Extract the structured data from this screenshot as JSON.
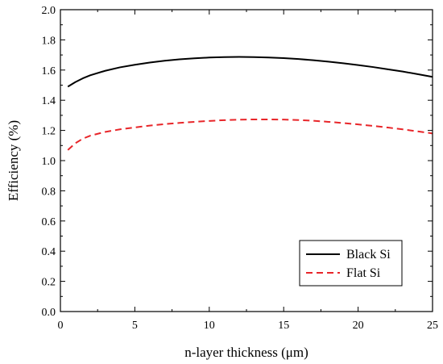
{
  "chart_data": {
    "type": "line",
    "title": "",
    "xlabel": "n-layer thickness (μm)",
    "ylabel": "Efficiency (%)",
    "xlim": [
      0,
      25
    ],
    "ylim": [
      0.0,
      2.0
    ],
    "x_ticks": [
      "0",
      "5",
      "10",
      "15",
      "20",
      "25"
    ],
    "y_ticks": [
      "0.0",
      "0.2",
      "0.4",
      "0.6",
      "0.8",
      "1.0",
      "1.2",
      "1.4",
      "1.6",
      "1.8",
      "2.0"
    ],
    "grid": false,
    "legend_position": "bottom-right",
    "series": [
      {
        "name": "Black Si",
        "color": "#000000",
        "style": "solid",
        "x": [
          0.5,
          1,
          1.5,
          2,
          3,
          4,
          5,
          6,
          7,
          8,
          9,
          10,
          11,
          12,
          13,
          14,
          15,
          16,
          17,
          18,
          19,
          20,
          21,
          22,
          23,
          24,
          25
        ],
        "y": [
          1.49,
          1.52,
          1.545,
          1.565,
          1.595,
          1.618,
          1.635,
          1.65,
          1.662,
          1.671,
          1.678,
          1.683,
          1.686,
          1.687,
          1.686,
          1.683,
          1.679,
          1.673,
          1.665,
          1.656,
          1.645,
          1.633,
          1.62,
          1.605,
          1.59,
          1.573,
          1.555
        ]
      },
      {
        "name": "Flat Si",
        "color": "#e8262a",
        "style": "dashed",
        "x": [
          0.5,
          1,
          1.5,
          2,
          3,
          4,
          5,
          6,
          7,
          8,
          9,
          10,
          11,
          12,
          13,
          14,
          15,
          16,
          17,
          18,
          19,
          20,
          21,
          22,
          23,
          24,
          25
        ],
        "y": [
          1.07,
          1.115,
          1.145,
          1.165,
          1.19,
          1.207,
          1.22,
          1.232,
          1.242,
          1.25,
          1.257,
          1.263,
          1.268,
          1.271,
          1.273,
          1.273,
          1.272,
          1.269,
          1.264,
          1.257,
          1.249,
          1.24,
          1.23,
          1.219,
          1.207,
          1.194,
          1.18
        ]
      }
    ]
  }
}
